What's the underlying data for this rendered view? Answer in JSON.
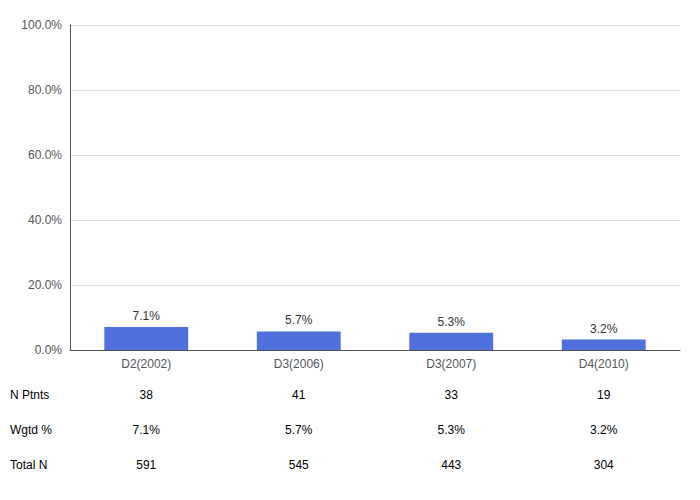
{
  "chart_data": {
    "type": "bar",
    "categories": [
      "D2(2002)",
      "D3(2006)",
      "D3(2007)",
      "D4(2010)"
    ],
    "values": [
      7.1,
      5.7,
      5.3,
      3.2
    ],
    "value_labels": [
      "7.1%",
      "5.7%",
      "5.3%",
      "3.2%"
    ],
    "data_labels": true,
    "ylim": [
      0,
      100
    ],
    "yticks": [
      {
        "value": 0,
        "label": "0.0%"
      },
      {
        "value": 20.0,
        "label": "20.0%"
      },
      {
        "value": 40.0,
        "label": "40.0%"
      },
      {
        "value": 60.0,
        "label": "60.0%"
      },
      {
        "value": 80.0,
        "label": "80.0%"
      },
      {
        "value": 100.0,
        "label": "100.0%"
      }
    ],
    "grid": true,
    "table": [
      {
        "label": "N Ptnts",
        "values": [
          38,
          41,
          33,
          19
        ]
      },
      {
        "label": "Wgtd %",
        "values": [
          7.1,
          5.7,
          5.3,
          3.2
        ],
        "value_labels": [
          "7.1%",
          "5.7%",
          "5.3%",
          "3.2%"
        ]
      },
      {
        "label": "Total N",
        "values": [
          591,
          545,
          443,
          304
        ]
      }
    ]
  }
}
